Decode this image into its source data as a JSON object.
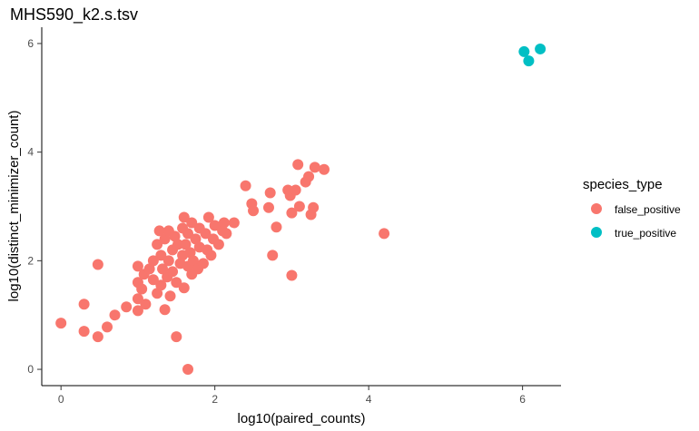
{
  "chart_data": {
    "type": "scatter",
    "title": "MHS590_k2.s.tsv",
    "xlabel": "log10(paired_counts)",
    "ylabel": "log10(distinct_minimizer_count)",
    "xlim": [
      -0.25,
      6.5
    ],
    "ylim": [
      -0.3,
      6.3
    ],
    "x_ticks": [
      0,
      2,
      4,
      6
    ],
    "y_ticks": [
      0,
      2,
      4,
      6
    ],
    "grid": false,
    "legend": {
      "title": "species_type",
      "placement": "right"
    },
    "series": [
      {
        "name": "false_positive",
        "color": "#F8766D",
        "points": [
          [
            0.0,
            0.85
          ],
          [
            0.3,
            0.7
          ],
          [
            0.3,
            1.2
          ],
          [
            0.48,
            0.6
          ],
          [
            0.48,
            1.93
          ],
          [
            0.6,
            0.78
          ],
          [
            0.7,
            1.0
          ],
          [
            0.85,
            1.15
          ],
          [
            1.0,
            1.08
          ],
          [
            1.0,
            1.3
          ],
          [
            1.0,
            1.6
          ],
          [
            1.0,
            1.9
          ],
          [
            1.05,
            1.48
          ],
          [
            1.08,
            1.75
          ],
          [
            1.1,
            1.2
          ],
          [
            1.15,
            1.85
          ],
          [
            1.2,
            1.65
          ],
          [
            1.2,
            2.0
          ],
          [
            1.25,
            1.4
          ],
          [
            1.25,
            2.3
          ],
          [
            1.28,
            2.55
          ],
          [
            1.3,
            1.55
          ],
          [
            1.3,
            2.1
          ],
          [
            1.32,
            1.85
          ],
          [
            1.35,
            1.1
          ],
          [
            1.35,
            2.4
          ],
          [
            1.38,
            1.7
          ],
          [
            1.4,
            2.0
          ],
          [
            1.4,
            2.55
          ],
          [
            1.42,
            1.35
          ],
          [
            1.45,
            1.8
          ],
          [
            1.45,
            2.2
          ],
          [
            1.48,
            2.45
          ],
          [
            1.5,
            0.6
          ],
          [
            1.5,
            1.6
          ],
          [
            1.52,
            2.3
          ],
          [
            1.55,
            1.95
          ],
          [
            1.58,
            2.1
          ],
          [
            1.58,
            2.6
          ],
          [
            1.6,
            1.5
          ],
          [
            1.6,
            2.8
          ],
          [
            1.62,
            2.3
          ],
          [
            1.65,
            0.0
          ],
          [
            1.65,
            1.9
          ],
          [
            1.65,
            2.5
          ],
          [
            1.68,
            2.15
          ],
          [
            1.7,
            1.75
          ],
          [
            1.7,
            2.7
          ],
          [
            1.72,
            2.0
          ],
          [
            1.75,
            2.4
          ],
          [
            1.78,
            1.85
          ],
          [
            1.8,
            2.25
          ],
          [
            1.8,
            2.6
          ],
          [
            1.85,
            1.95
          ],
          [
            1.88,
            2.5
          ],
          [
            1.9,
            2.2
          ],
          [
            1.92,
            2.8
          ],
          [
            1.95,
            2.1
          ],
          [
            1.98,
            2.4
          ],
          [
            2.0,
            2.65
          ],
          [
            2.05,
            2.3
          ],
          [
            2.1,
            2.55
          ],
          [
            2.12,
            2.7
          ],
          [
            2.15,
            2.5
          ],
          [
            2.25,
            2.7
          ],
          [
            2.4,
            3.38
          ],
          [
            2.48,
            3.05
          ],
          [
            2.5,
            2.92
          ],
          [
            2.7,
            2.98
          ],
          [
            2.72,
            3.25
          ],
          [
            2.75,
            2.1
          ],
          [
            2.8,
            2.62
          ],
          [
            2.95,
            3.3
          ],
          [
            2.98,
            3.2
          ],
          [
            3.0,
            1.73
          ],
          [
            3.0,
            2.88
          ],
          [
            3.05,
            3.3
          ],
          [
            3.08,
            3.77
          ],
          [
            3.1,
            3.0
          ],
          [
            3.18,
            3.45
          ],
          [
            3.22,
            3.55
          ],
          [
            3.25,
            2.85
          ],
          [
            3.28,
            2.98
          ],
          [
            3.3,
            3.72
          ],
          [
            3.42,
            3.68
          ],
          [
            4.2,
            2.5
          ]
        ]
      },
      {
        "name": "true_positive",
        "color": "#00BFC4",
        "points": [
          [
            6.02,
            5.85
          ],
          [
            6.08,
            5.68
          ],
          [
            6.23,
            5.9
          ]
        ]
      }
    ]
  }
}
